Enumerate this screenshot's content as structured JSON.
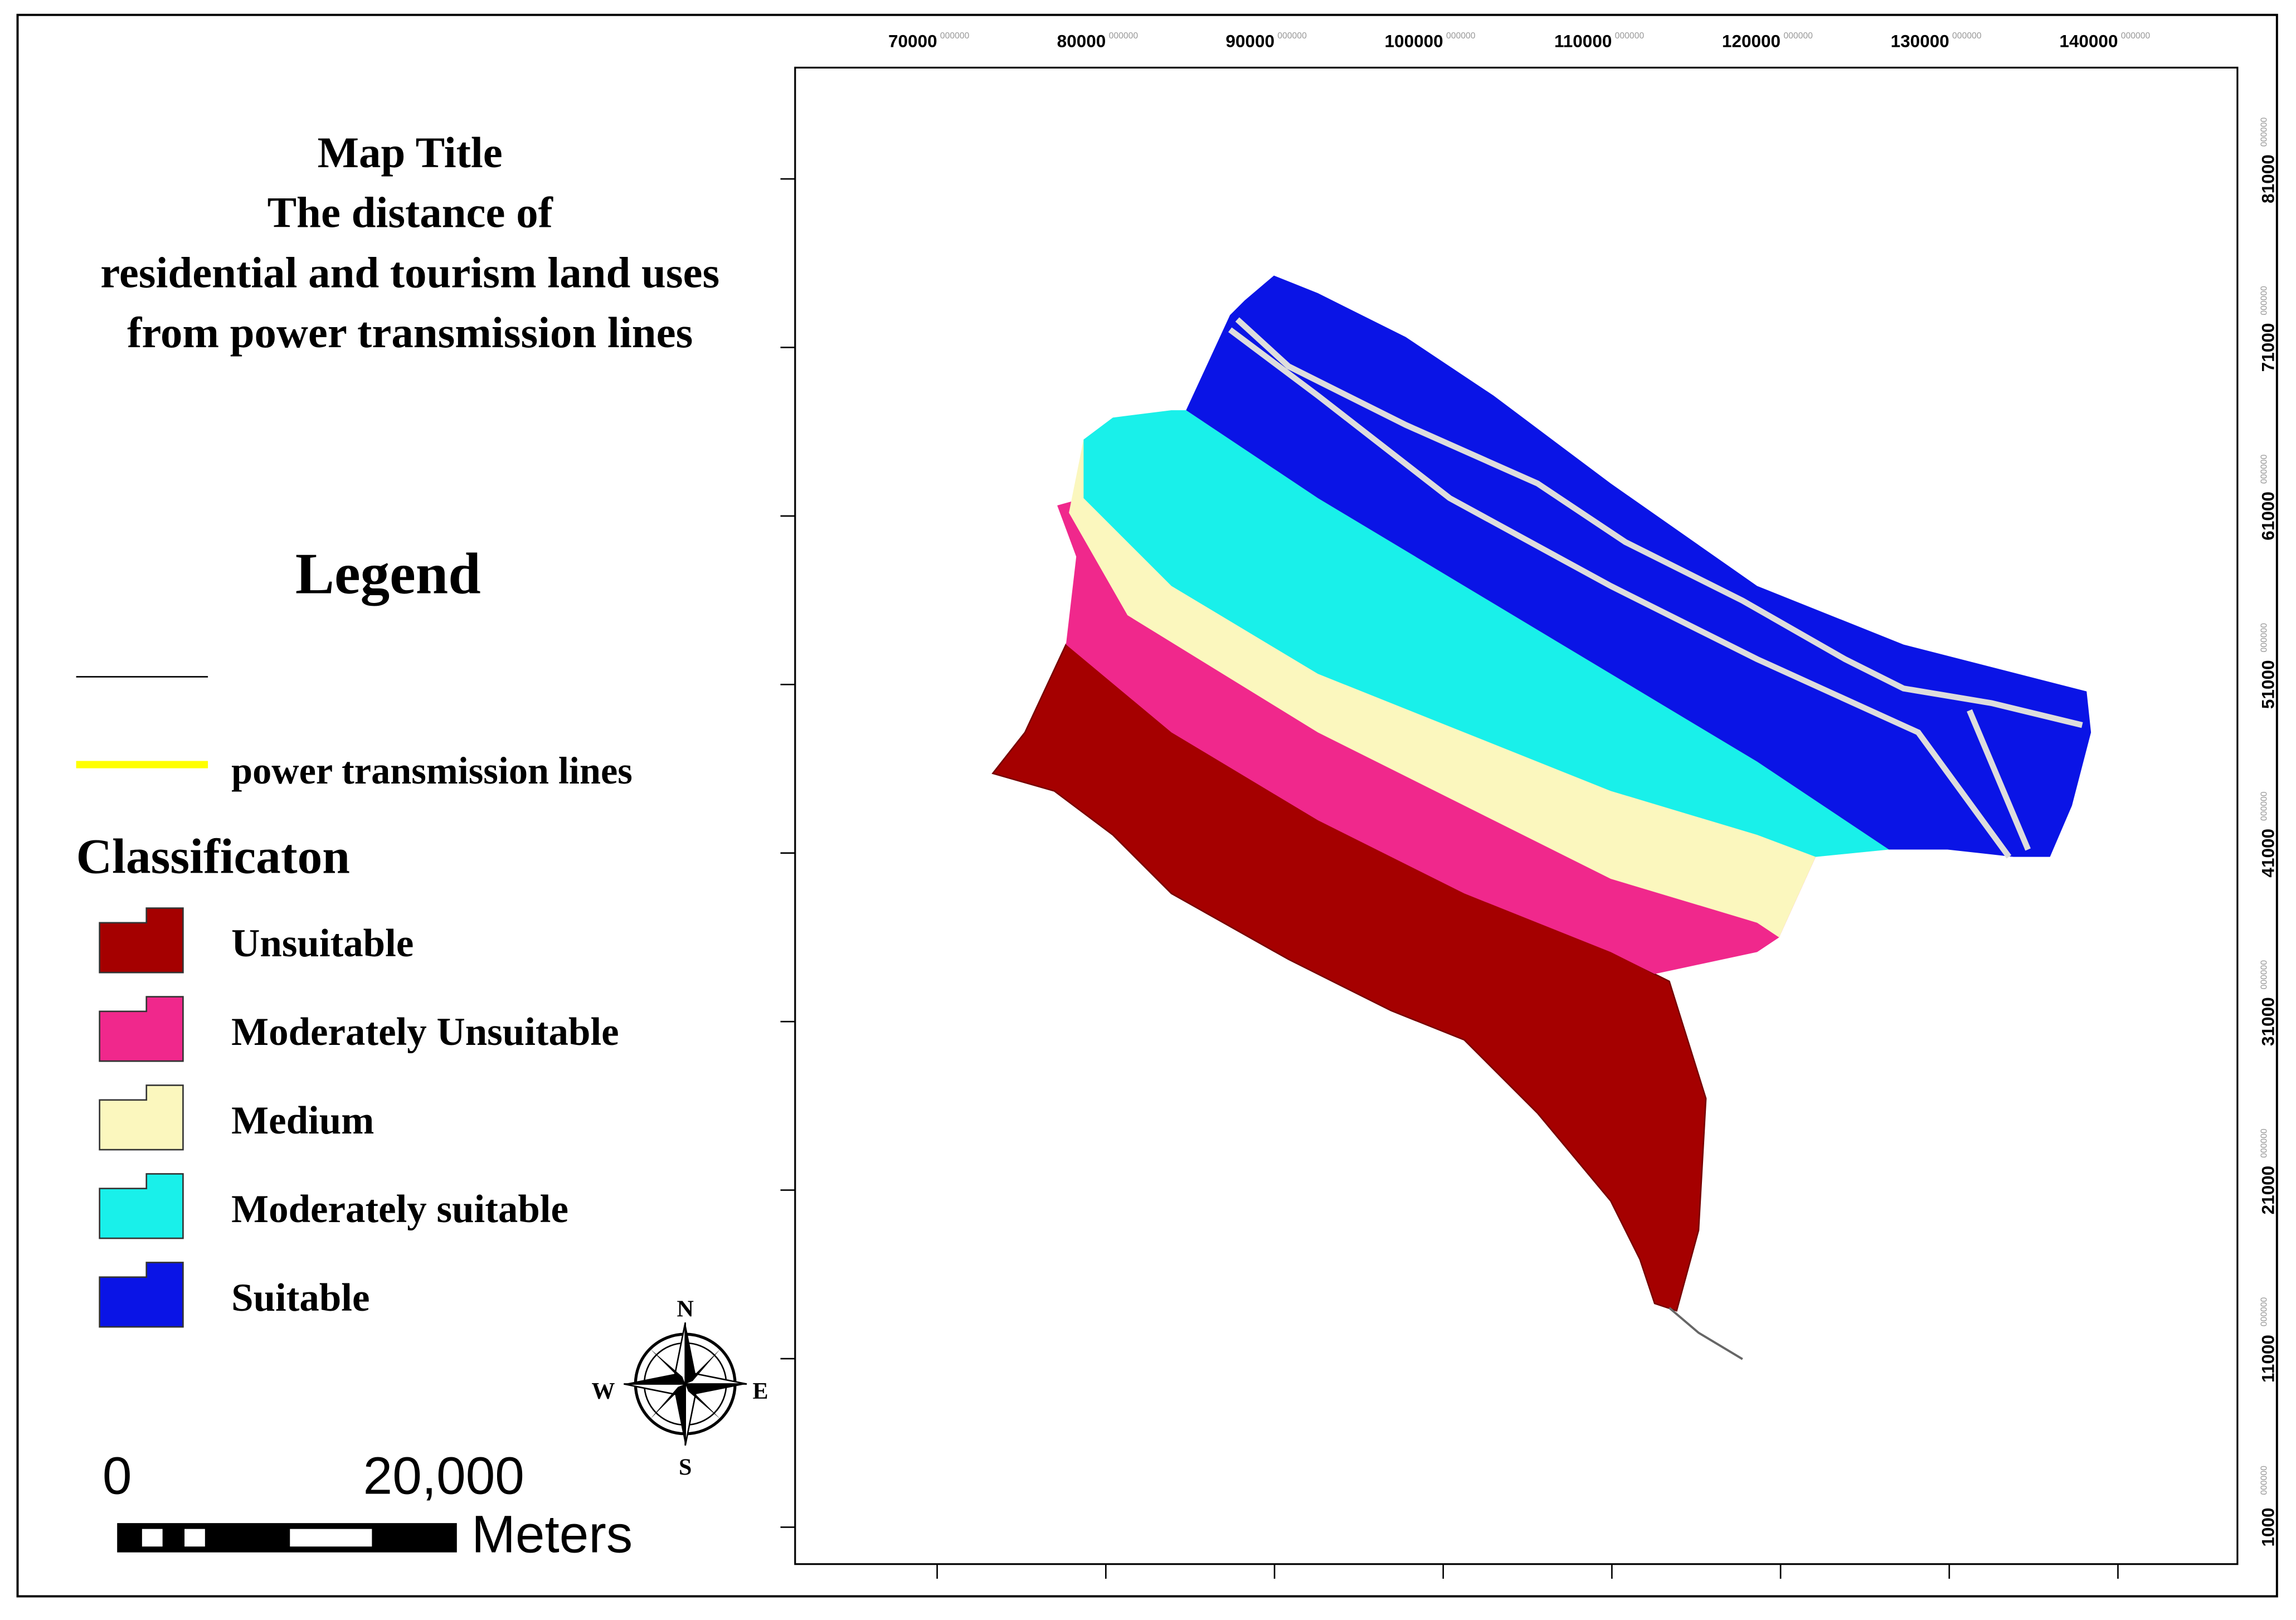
{
  "title": [
    "Map Title",
    "The distance of",
    "residential and tourism land uses",
    "from power transmission lines"
  ],
  "legend": {
    "title": "Legend",
    "line_label": "power transmission lines",
    "line_color": "#ffff00",
    "classification_title": "Classificaton",
    "classes": [
      {
        "label": "Unsuitable",
        "color": "#a50000"
      },
      {
        "label": "Moderately Unsuitable",
        "color": "#f0288c"
      },
      {
        "label": "Medium",
        "color": "#fbf7be"
      },
      {
        "label": "Moderately suitable",
        "color": "#19f0ea"
      },
      {
        "label": "Suitable",
        "color": "#0a14e6"
      }
    ]
  },
  "x_axis": {
    "ticks": [
      "70000",
      "80000",
      "90000",
      "100000",
      "110000",
      "120000",
      "130000",
      "140000"
    ],
    "fraction": "000000"
  },
  "y_axis": {
    "ticks": [
      "81000",
      "71000",
      "61000",
      "51000",
      "41000",
      "31000",
      "21000",
      "11000",
      "1000"
    ]
  },
  "north_arrow": {
    "n": "N",
    "s": "S",
    "e": "E",
    "w": "W"
  },
  "scale_bar": {
    "start": "0",
    "end": "20,000",
    "unit": "Meters"
  }
}
